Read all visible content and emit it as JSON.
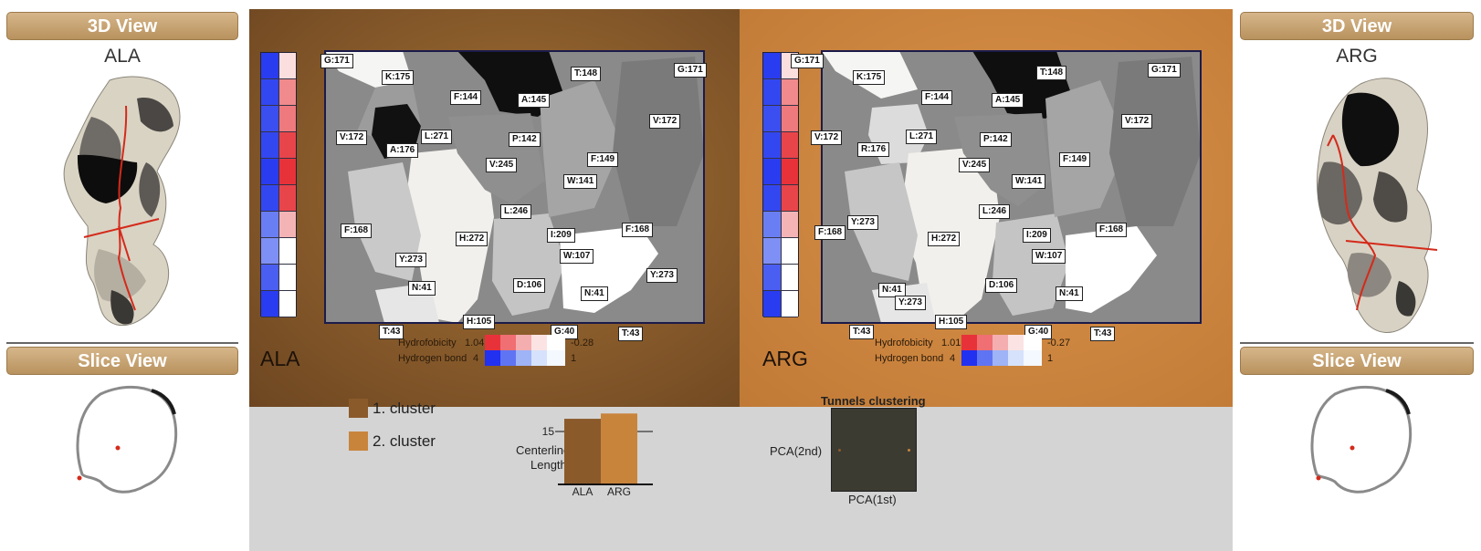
{
  "left_side": {
    "view3d_title": "3D View",
    "protein_name": "ALA",
    "slice_title": "Slice View"
  },
  "right_side": {
    "view3d_title": "3D View",
    "protein_name": "ARG",
    "slice_title": "Slice View"
  },
  "panel_ala": {
    "name": "ALA",
    "residues": [
      "G:171",
      "K:175",
      "F:144",
      "A:145",
      "T:148",
      "G:171",
      "V:172",
      "L:271",
      "P:142",
      "V:172",
      "A:176",
      "V:245",
      "F:149",
      "W:141",
      "L:246",
      "F:168",
      "I:209",
      "F:168",
      "H:272",
      "Y:273",
      "W:107",
      "Y:273",
      "D:106",
      "N:41",
      "N:41",
      "T:43",
      "H:105",
      "G:40",
      "T:43"
    ],
    "legend": {
      "hydro_label": "Hydrofobicity",
      "hydro_max": "1.04",
      "hydro_min": "-0.28",
      "hbond_label": "Hydrogen bond",
      "hbond_max": "4",
      "hbond_min": "1"
    }
  },
  "panel_arg": {
    "name": "ARG",
    "residues": [
      "G:171",
      "K:175",
      "F:144",
      "A:145",
      "T:148",
      "G:171",
      "V:172",
      "R:176",
      "L:271",
      "P:142",
      "V:172",
      "V:245",
      "F:149",
      "W:141",
      "Y:273",
      "L:246",
      "F:168",
      "F:168",
      "H:272",
      "I:209",
      "W:107",
      "N:41",
      "Y:273",
      "D:106",
      "N:41",
      "T:43",
      "H:105",
      "G:40",
      "T:43"
    ],
    "legend": {
      "hydro_label": "Hydrofobicity",
      "hydro_max": "1.01",
      "hydro_min": "-0.27",
      "hbond_label": "Hydrogen bond",
      "hbond_max": "4",
      "hbond_min": "1"
    }
  },
  "clusters": {
    "items": [
      {
        "label": "1. cluster",
        "color": "#8b5a2b"
      },
      {
        "label": "2. cluster",
        "color": "#c9843c"
      }
    ]
  },
  "bar_chart": {
    "ylabel_line1": "Centerline",
    "ylabel_line2": "Length",
    "tick": "15"
  },
  "chart_data": {
    "type": "bar",
    "categories": [
      "ALA",
      "ARG"
    ],
    "values": [
      16.2,
      16.7
    ],
    "ylim": [
      10,
      17.5
    ],
    "ticks": [
      15
    ],
    "ylabel": "Centerline Length"
  },
  "pca": {
    "title": "Tunnels clustering",
    "ylabel": "PCA(2nd)",
    "xlabel": "PCA(1st)"
  },
  "colors": {
    "ala_panel": "#8c5e2c",
    "arg_panel": "#cd8640",
    "header": "#c8a676"
  }
}
